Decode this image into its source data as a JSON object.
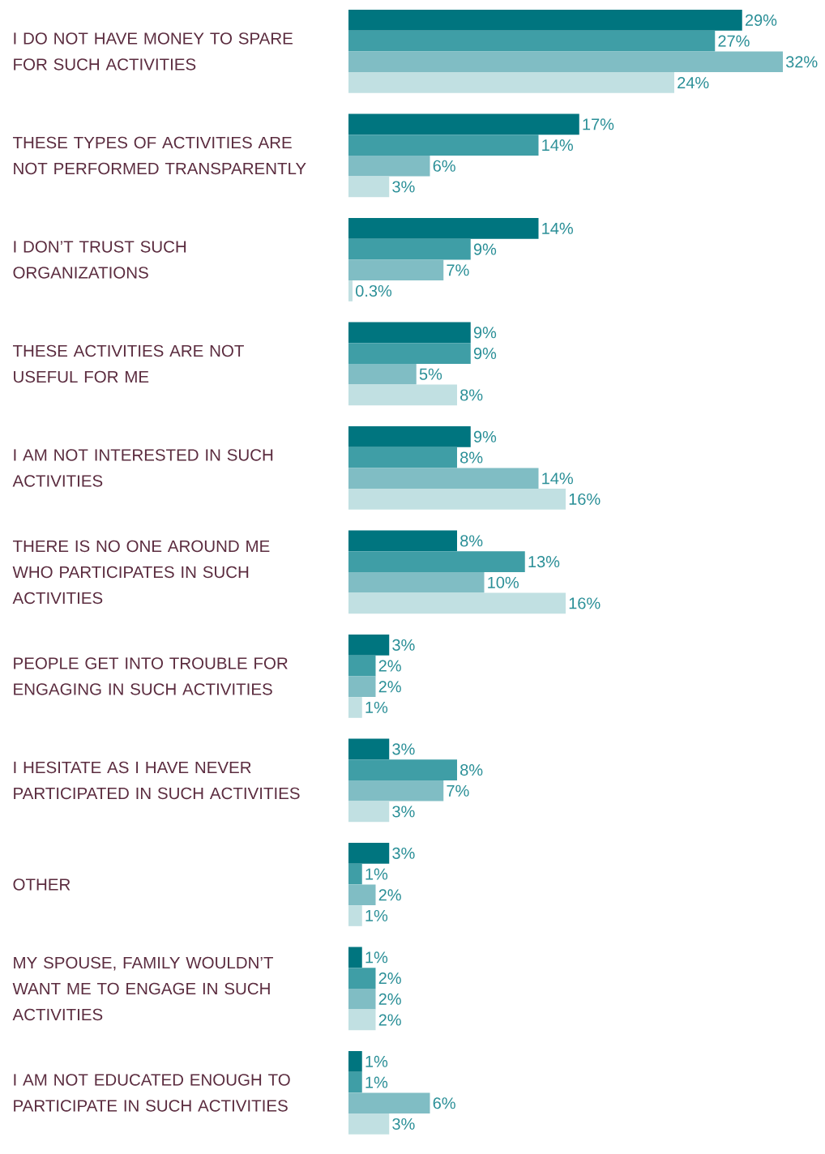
{
  "chart_data": {
    "type": "bar",
    "orientation": "horizontal",
    "categories": [
      "I DO NOT HAVE MONEY TO SPARE FOR SUCH ACTIVITIES",
      "THESE TYPES OF ACTIVITIES ARE NOT PERFORMED TRANSPARENTLY",
      "I DON’T TRUST SUCH ORGANIZATIONS",
      "THESE ACTIVITIES ARE NOT USEFUL FOR ME",
      "I AM NOT INTERESTED IN SUCH ACTIVITIES",
      "THERE IS NO ONE AROUND ME WHO PARTICIPATES IN SUCH ACTIVITIES",
      "PEOPLE GET INTO TROUBLE FOR ENGAGING IN SUCH ACTIVITIES",
      "I HESITATE AS I HAVE NEVER PARTICIPATED IN SUCH ACTIVITIES",
      "OTHER",
      "MY SPOUSE, FAMILY WOULDN’T WANT ME TO ENGAGE IN SUCH ACTIVITIES",
      "I AM NOT EDUCATED ENOUGH TO PARTICIPATE IN SUCH ACTIVITIES"
    ],
    "xlim": [
      0,
      32
    ],
    "series": [
      {
        "color": "#00757f",
        "values": [
          29,
          17,
          14,
          9,
          9,
          8,
          3,
          3,
          3,
          1,
          1
        ],
        "value_labels": [
          "29%",
          "17%",
          "14%",
          "9%",
          "9%",
          "8%",
          "3%",
          "3%",
          "3%",
          "1%",
          "1%"
        ]
      },
      {
        "color": "#3f9ea6",
        "values": [
          27,
          14,
          9,
          9,
          8,
          13,
          2,
          8,
          1,
          2,
          1
        ],
        "value_labels": [
          "27%",
          "14%",
          "9%",
          "9%",
          "8%",
          "13%",
          "2%",
          "8%",
          "1%",
          "2%",
          "1%"
        ]
      },
      {
        "color": "#80bdc4",
        "values": [
          32,
          6,
          7,
          5,
          14,
          10,
          2,
          7,
          2,
          2,
          6
        ],
        "value_labels": [
          "32%",
          "6%",
          "7%",
          "5%",
          "14%",
          "10%",
          "2%",
          "7%",
          "2%",
          "2%",
          "6%"
        ]
      },
      {
        "color": "#c1e0e2",
        "values": [
          24,
          3,
          0.3,
          8,
          16,
          16,
          1,
          3,
          1,
          2,
          3
        ],
        "value_labels": [
          "24%",
          "3%",
          "0.3%",
          "8%",
          "16%",
          "16%",
          "1%",
          "3%",
          "1%",
          "2%",
          "3%"
        ]
      }
    ]
  }
}
